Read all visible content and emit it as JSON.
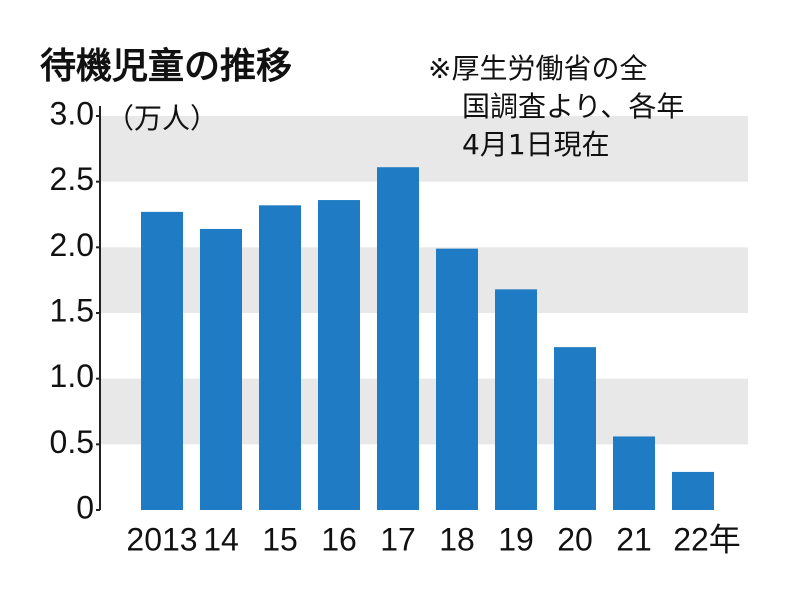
{
  "chart_data": {
    "type": "bar",
    "title": "待機児童の推移",
    "y_label": "（万人）",
    "annotation": [
      "※厚生労働省の全",
      "国調査より、各年",
      "4月1日現在"
    ],
    "categories": [
      "2013",
      "14",
      "15",
      "16",
      "17",
      "18",
      "19",
      "20",
      "21",
      "22年"
    ],
    "values": [
      2.27,
      2.14,
      2.32,
      2.36,
      2.61,
      1.99,
      1.68,
      1.24,
      0.56,
      0.29
    ],
    "color": "#1f7bc4",
    "ylim": [
      0,
      3
    ],
    "yticks": [
      {
        "value": 3,
        "label": "3.0"
      },
      {
        "value": 2.5,
        "label": "2.5"
      },
      {
        "value": 2,
        "label": "2.0"
      },
      {
        "value": 1.5,
        "label": "1.5"
      },
      {
        "value": 1,
        "label": "1.0"
      },
      {
        "value": 0.5,
        "label": "0.5"
      },
      0
    ],
    "banded_grid": true
  }
}
